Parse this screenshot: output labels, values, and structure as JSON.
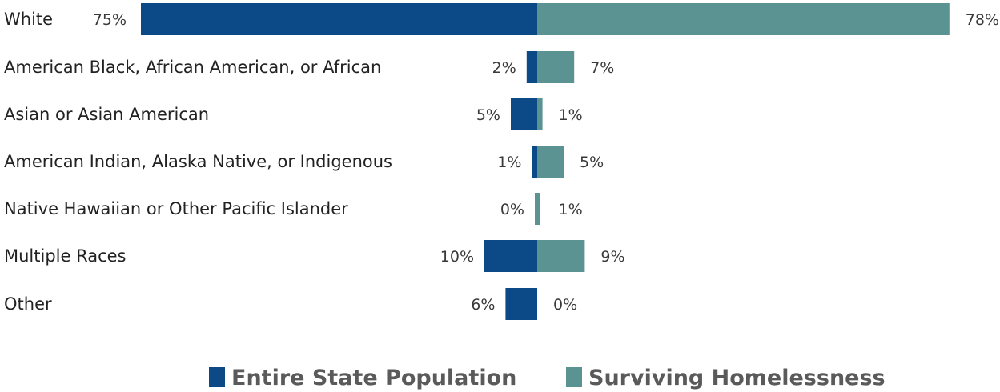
{
  "chart_data": {
    "type": "bar",
    "orientation": "horizontal-diverging",
    "title": "",
    "xlabel": "",
    "ylabel": "",
    "categories": [
      "White",
      "American Black, African American, or African",
      "Asian or Asian American",
      "American Indian, Alaska Native, or Indigenous",
      "Native Hawaiian or Other Pacific Islander",
      "Multiple Races",
      "Other"
    ],
    "series": [
      {
        "name": "Entire State Population",
        "color": "#0b4a86",
        "values": [
          75,
          2,
          5,
          1,
          0,
          10,
          6
        ],
        "labels": [
          "75%",
          "2%",
          "5%",
          "1%",
          "0%",
          "10%",
          "6%"
        ]
      },
      {
        "name": "Surviving Homelessness",
        "color": "#5b9292",
        "values": [
          78,
          7,
          1,
          5,
          1,
          9,
          0
        ],
        "labels": [
          "78%",
          "7%",
          "1%",
          "5%",
          "1%",
          "9%",
          "0%"
        ]
      }
    ],
    "unit": "%",
    "grid": false,
    "legend_position": "bottom"
  }
}
